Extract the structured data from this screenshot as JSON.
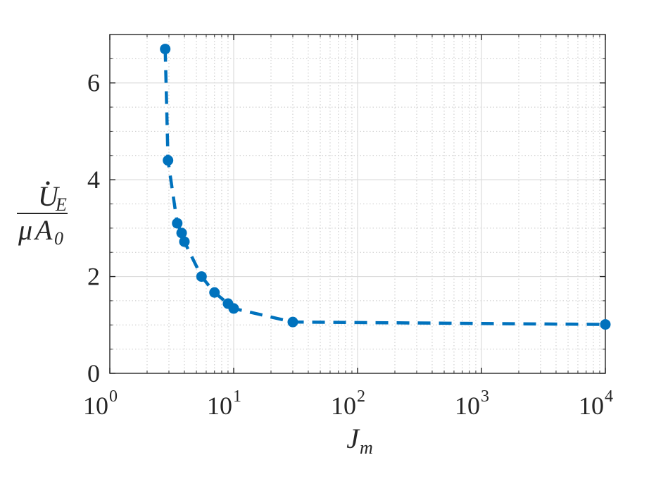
{
  "chart_data": {
    "type": "line",
    "xscale": "log",
    "xlim": [
      1,
      10000
    ],
    "ylim": [
      0,
      7
    ],
    "grid": true,
    "minor_grid": true,
    "xlabel": {
      "base": "J",
      "subscript": "m"
    },
    "ylabel": {
      "numerator": {
        "base": "U",
        "subscript": "E",
        "accent": "dot"
      },
      "denominator": {
        "prefix": "μ",
        "base": "A",
        "subscript": "0"
      }
    },
    "x_ticks": [
      {
        "value": 1,
        "base": "10",
        "exponent": "0"
      },
      {
        "value": 10,
        "base": "10",
        "exponent": "1"
      },
      {
        "value": 100,
        "base": "10",
        "exponent": "2"
      },
      {
        "value": 1000,
        "base": "10",
        "exponent": "3"
      },
      {
        "value": 10000,
        "base": "10",
        "exponent": "4"
      }
    ],
    "y_ticks": [
      {
        "value": 0,
        "label": "0"
      },
      {
        "value": 2,
        "label": "2"
      },
      {
        "value": 4,
        "label": "4"
      },
      {
        "value": 6,
        "label": "6"
      }
    ],
    "series": [
      {
        "color": "#0072BD",
        "line_style": "dashed",
        "marker": "circle",
        "x": [
          2.8,
          2.95,
          3.5,
          3.8,
          4.0,
          5.5,
          7.0,
          9.0,
          10.0,
          30.0,
          10000.0
        ],
        "y": [
          6.7,
          4.4,
          3.1,
          2.9,
          2.72,
          2.0,
          1.67,
          1.44,
          1.34,
          1.06,
          1.01
        ]
      }
    ]
  }
}
